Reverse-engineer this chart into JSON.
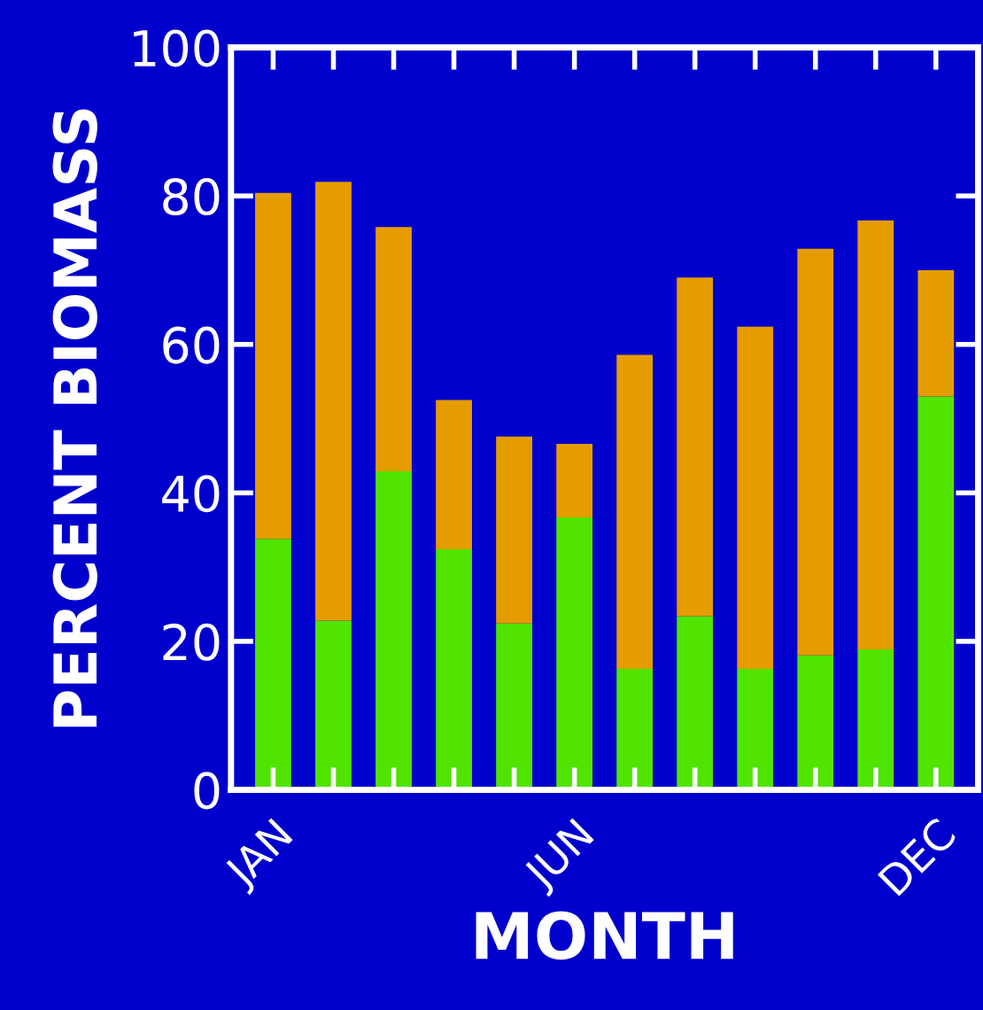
{
  "chart_data": {
    "type": "bar",
    "stacked": true,
    "xlabel": "MONTH",
    "ylabel": "PERCENT BIOMASS",
    "categories": [
      "JAN",
      null,
      null,
      null,
      null,
      "JUN",
      null,
      null,
      null,
      null,
      null,
      "DEC"
    ],
    "series": [
      {
        "color": "#50e400",
        "values": [
          33.8,
          22.8,
          42.9,
          32.4,
          22.4,
          36.7,
          16.3,
          23.4,
          16.3,
          18.1,
          18.9,
          53.0
        ]
      },
      {
        "color": "#e49c00",
        "values": [
          46.6,
          59.1,
          32.9,
          20.1,
          25.2,
          9.9,
          42.3,
          45.6,
          46.1,
          54.8,
          57.8,
          17.0
        ]
      }
    ],
    "ylim": [
      0,
      100
    ],
    "yticks": [
      0,
      20,
      40,
      60,
      80,
      100
    ],
    "grid": false,
    "legend": false
  }
}
